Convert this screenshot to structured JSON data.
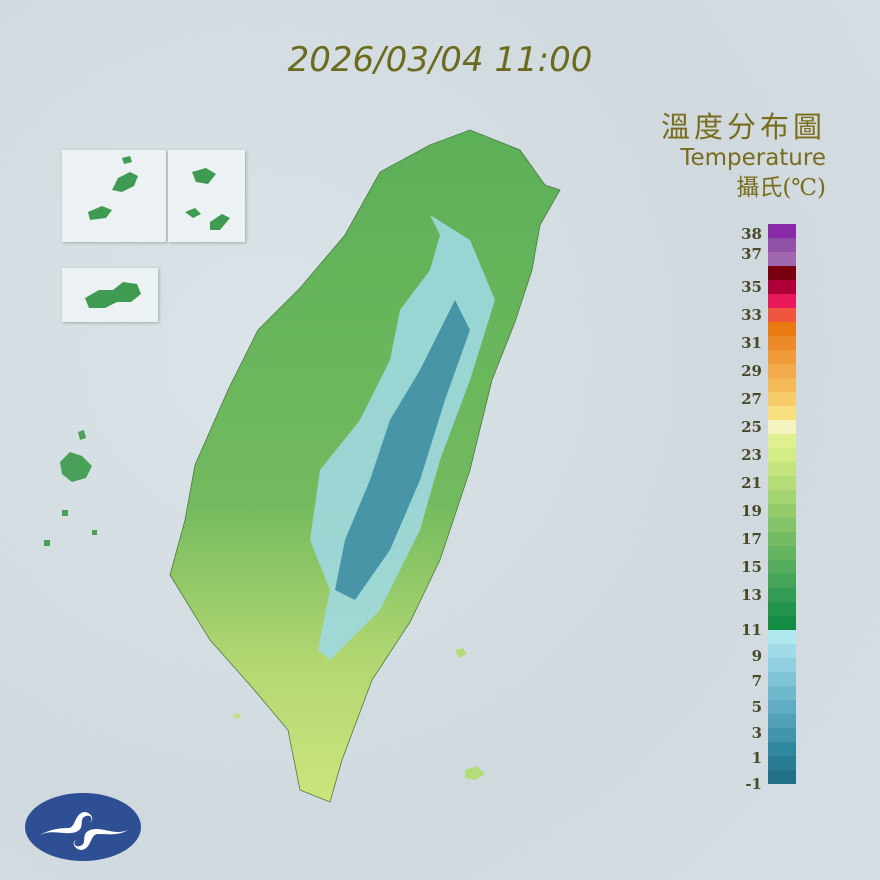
{
  "header": {
    "timestamp": "2026/03/04 11:00"
  },
  "legend": {
    "title_zh": "溫度分布圖",
    "title_en": "Temperature",
    "unit": "攝氏(℃)",
    "tick_labels": [
      "38",
      "37",
      "35",
      "33",
      "31",
      "29",
      "27",
      "25",
      "23",
      "21",
      "19",
      "17",
      "15",
      "13",
      "11",
      "9",
      "7",
      "5",
      "3",
      "1",
      "-1"
    ],
    "colors": [
      "#8a2aa8",
      "#9150a8",
      "#a066b0",
      "#7a0010",
      "#b0003a",
      "#e8195a",
      "#f05540",
      "#e87a10",
      "#ec8a2a",
      "#f09a3a",
      "#f2aa4a",
      "#f4ba5a",
      "#f6cc6a",
      "#f8e080",
      "#f4f4c0",
      "#e0f090",
      "#d4ec88",
      "#c4e480",
      "#b4dc78",
      "#a4d470",
      "#94cc6c",
      "#84c468",
      "#74bc64",
      "#64b460",
      "#54ac5c",
      "#44a458",
      "#349c54",
      "#24944c",
      "#148c44",
      "#b0e8f0",
      "#a0dce8",
      "#90d0e0",
      "#80c4d8",
      "#70b8cc",
      "#60acc4",
      "#50a0b8",
      "#4094ac",
      "#3088a0",
      "#287c94",
      "#207088"
    ]
  },
  "map": {
    "region": "Taiwan",
    "lowland_color": "#6cb85c",
    "south_color": "#c4e07a",
    "mountain_color": "#3a8aa0",
    "highland_color": "#9fd8e0"
  },
  "logo": {
    "color": "#2e4f94"
  }
}
